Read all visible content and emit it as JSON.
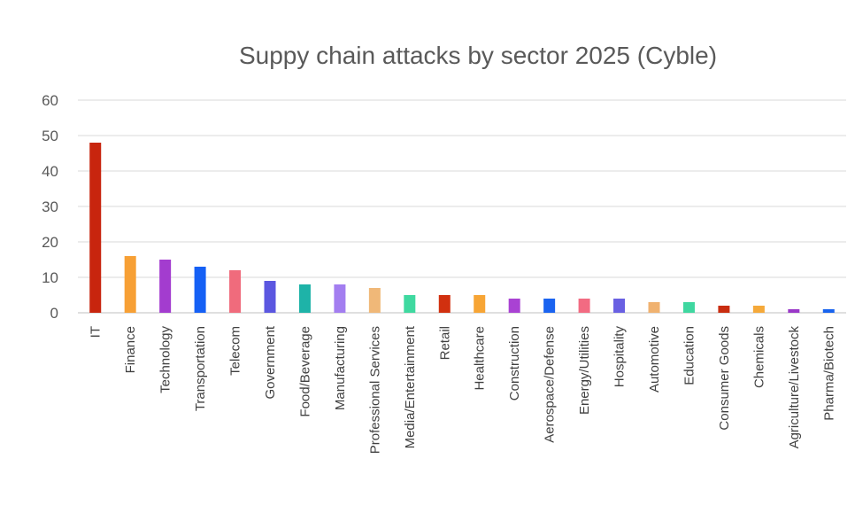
{
  "chart_data": {
    "type": "bar",
    "title": "Suppy chain attacks by sector 2025 (Cyble)",
    "xlabel": "",
    "ylabel": "",
    "ylim": [
      0,
      60
    ],
    "yticks": [
      0,
      10,
      20,
      30,
      40,
      50,
      60
    ],
    "grid": true,
    "legend": "none",
    "categories": [
      "IT",
      "Finance",
      "Technology",
      "Transportation",
      "Telecom",
      "Government",
      "Food/Beverage",
      "Manufacturing",
      "Professional Services",
      "Media/Entertainment",
      "Retail",
      "Healthcare",
      "Construction",
      "Aerospace/Defense",
      "Energy/Utilities",
      "Hospitality",
      "Automotive",
      "Education",
      "Consumer Goods",
      "Chemicals",
      "Agriculture/Livestock",
      "Pharma/Biotech"
    ],
    "values": [
      48,
      16,
      15,
      13,
      12,
      9,
      8,
      8,
      7,
      5,
      5,
      5,
      4,
      4,
      4,
      4,
      3,
      3,
      2,
      2,
      1,
      1
    ],
    "colors": [
      "#c8250e",
      "#f7a035",
      "#a33ccf",
      "#1560f5",
      "#f06b7c",
      "#5b57e0",
      "#1eb3a8",
      "#a37ef0",
      "#f0b878",
      "#3fd9a0",
      "#d1300f",
      "#f7a535",
      "#a942d3",
      "#1a63f0",
      "#f26b82",
      "#6960e2",
      "#f0b270",
      "#3fd7a0",
      "#c92d10",
      "#f5a93a",
      "#9a38c8",
      "#1863ee"
    ]
  }
}
